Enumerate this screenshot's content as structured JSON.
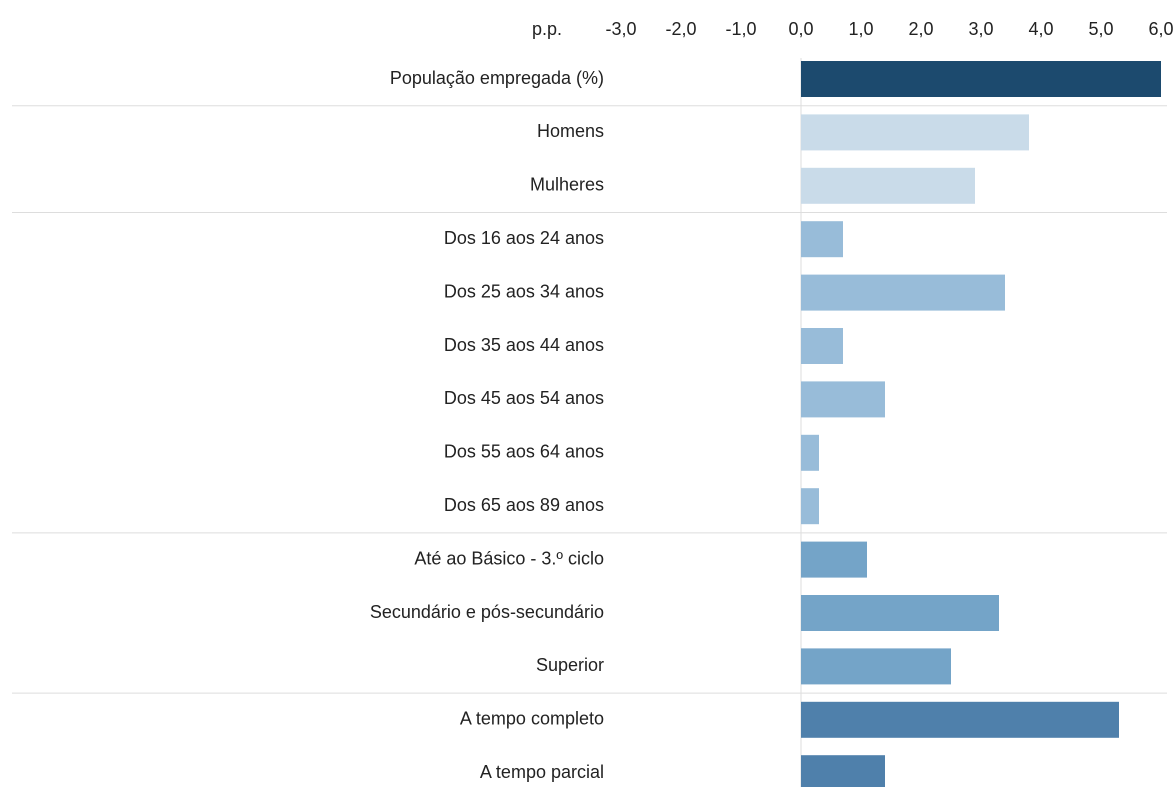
{
  "chart_data": {
    "type": "bar",
    "orientation": "horizontal",
    "xlabel": "p.p.",
    "categories": [
      "População empregada (%)",
      "Homens",
      "Mulheres",
      "Dos 16 aos 24 anos",
      "Dos 25 aos 34 anos",
      "Dos 35 aos 44 anos",
      "Dos 45 aos 54 anos",
      "Dos 55 aos 64 anos",
      "Dos 65 aos 89 anos",
      "Até ao Básico - 3.º ciclo",
      "Secundário e pós-secundário",
      "Superior",
      "A tempo completo",
      "A tempo parcial"
    ],
    "values": [
      6.0,
      3.8,
      2.9,
      0.7,
      3.4,
      0.7,
      1.4,
      0.3,
      0.3,
      1.1,
      3.3,
      2.5,
      5.3,
      1.4
    ],
    "colors": [
      "#1c4a6e",
      "#c9dbe9",
      "#c9dbe9",
      "#98bcd9",
      "#98bcd9",
      "#98bcd9",
      "#98bcd9",
      "#98bcd9",
      "#98bcd9",
      "#74a4c8",
      "#74a4c8",
      "#74a4c8",
      "#4f80ab",
      "#4f80ab"
    ],
    "xlim": [
      -3,
      6
    ],
    "xticks": [
      {
        "value": -3,
        "label": "-3,0"
      },
      {
        "value": -2,
        "label": "-2,0"
      },
      {
        "value": -1,
        "label": "-1,0"
      },
      {
        "value": 0,
        "label": "0,0"
      },
      {
        "value": 1,
        "label": "1,0"
      },
      {
        "value": 2,
        "label": "2,0"
      },
      {
        "value": 3,
        "label": "3,0"
      },
      {
        "value": 4,
        "label": "4,0"
      },
      {
        "value": 5,
        "label": "5,0"
      },
      {
        "value": 6,
        "label": "6,0"
      }
    ]
  }
}
